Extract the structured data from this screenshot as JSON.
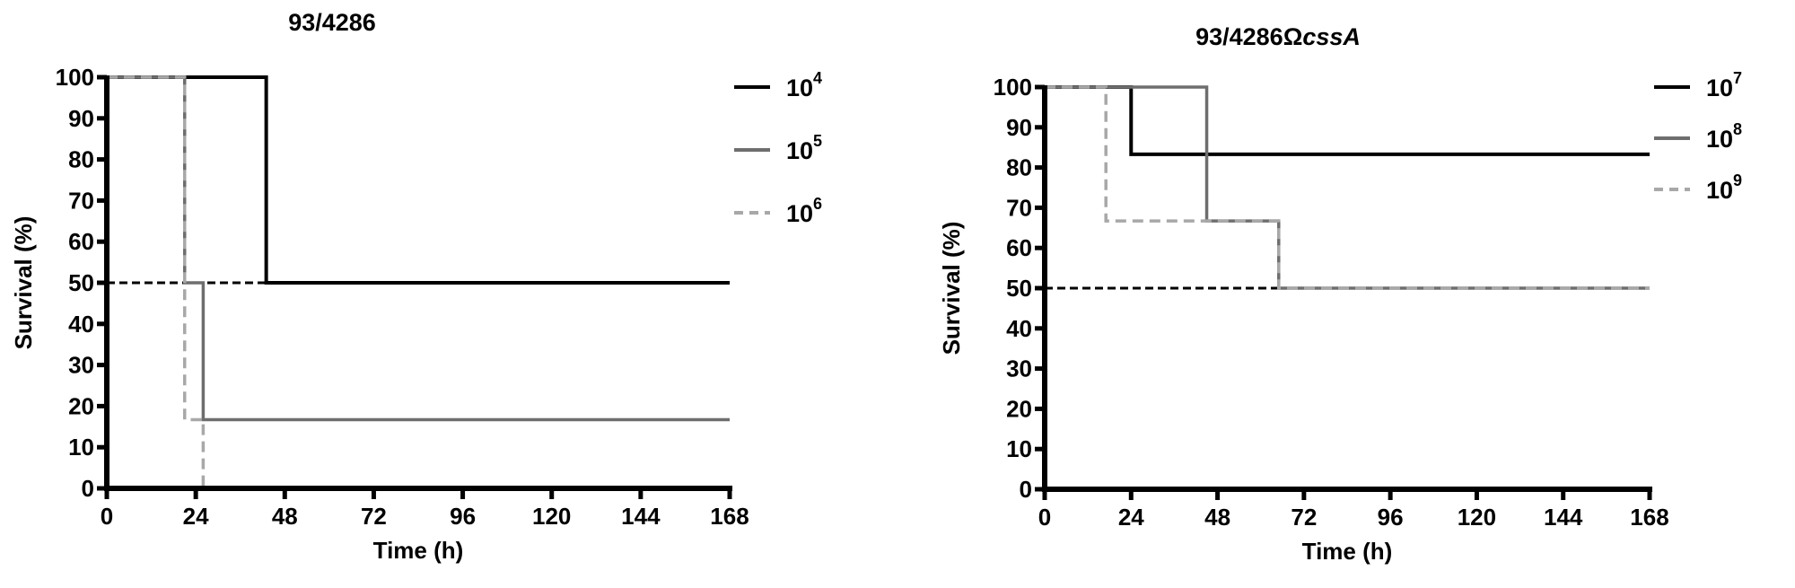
{
  "chart_data": [
    {
      "type": "line",
      "step": true,
      "title": "93/4286",
      "xlabel": "Time (h)",
      "ylabel": "Survival (%)",
      "xlim": [
        0,
        168
      ],
      "ylim": [
        0,
        100
      ],
      "xticks": [
        0,
        24,
        48,
        72,
        96,
        120,
        144,
        168
      ],
      "yticks": [
        0,
        10,
        20,
        30,
        40,
        50,
        60,
        70,
        80,
        90,
        100
      ],
      "grid": false,
      "legend_position": "right",
      "reference_line": {
        "y": 50,
        "x_end": 43,
        "style": "dashed",
        "color": "#000000"
      },
      "series": [
        {
          "name": "10",
          "exp": "4",
          "color": "#000000",
          "style": "solid",
          "x": [
            0,
            43,
            43,
            168
          ],
          "y": [
            100,
            100,
            50,
            50
          ]
        },
        {
          "name": "10",
          "exp": "5",
          "color": "#6e6e6e",
          "style": "solid",
          "x": [
            0,
            21,
            21,
            26,
            26,
            168
          ],
          "y": [
            100,
            100,
            50,
            50,
            16.7,
            16.7
          ]
        },
        {
          "name": "10",
          "exp": "6",
          "color": "#a8a8a8",
          "style": "dashed",
          "x": [
            0,
            21,
            21,
            26,
            26
          ],
          "y": [
            100,
            100,
            16.7,
            16.7,
            0
          ]
        }
      ]
    },
    {
      "type": "line",
      "step": true,
      "title": "93/4286Ω",
      "title_italic": "cssA",
      "xlabel": "Time (h)",
      "ylabel": "Survival (%)",
      "xlim": [
        0,
        168
      ],
      "ylim": [
        0,
        100
      ],
      "xticks": [
        0,
        24,
        48,
        72,
        96,
        120,
        144,
        168
      ],
      "yticks": [
        0,
        10,
        20,
        30,
        40,
        50,
        60,
        70,
        80,
        90,
        100
      ],
      "grid": false,
      "legend_position": "right",
      "reference_line": {
        "y": 50,
        "x_end": 65,
        "style": "dashed",
        "color": "#000000"
      },
      "series": [
        {
          "name": "10",
          "exp": "7",
          "color": "#000000",
          "style": "solid",
          "x": [
            0,
            24,
            24,
            168
          ],
          "y": [
            100,
            100,
            83.3,
            83.3
          ]
        },
        {
          "name": "10",
          "exp": "8",
          "color": "#6e6e6e",
          "style": "solid",
          "x": [
            0,
            45,
            45,
            65,
            65,
            168
          ],
          "y": [
            100,
            100,
            66.7,
            66.7,
            50,
            50
          ]
        },
        {
          "name": "10",
          "exp": "9",
          "color": "#a8a8a8",
          "style": "dashed",
          "x": [
            0,
            17,
            17,
            65,
            65,
            168
          ],
          "y": [
            100,
            100,
            66.7,
            66.7,
            50,
            50
          ]
        }
      ]
    }
  ]
}
